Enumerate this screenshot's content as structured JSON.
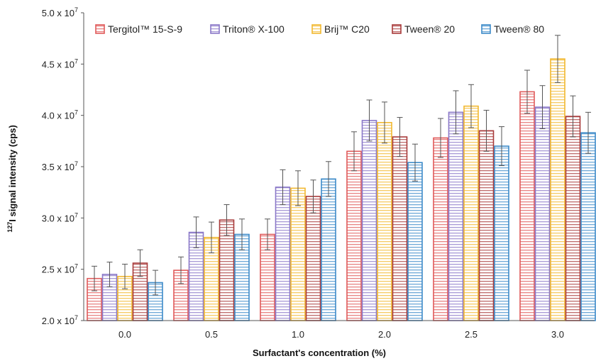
{
  "chart_data": {
    "type": "bar",
    "title": "",
    "xlabel": "Surfactant's concentration (%)",
    "ylabel_superscript": "127",
    "ylabel_main": "I signal intensity (cps)",
    "ylim": [
      20000000,
      50000000
    ],
    "y_ticks": [
      {
        "value": 20000000,
        "mantissa": "2.0 x 10",
        "exp": "7"
      },
      {
        "value": 25000000,
        "mantissa": "2.5 x 10",
        "exp": "7"
      },
      {
        "value": 30000000,
        "mantissa": "3.0 x 10",
        "exp": "7"
      },
      {
        "value": 35000000,
        "mantissa": "3.5 x 10",
        "exp": "7"
      },
      {
        "value": 40000000,
        "mantissa": "4.0 x 10",
        "exp": "7"
      },
      {
        "value": 45000000,
        "mantissa": "4.5 x 10",
        "exp": "7"
      },
      {
        "value": 50000000,
        "mantissa": "5.0 x 10",
        "exp": "7"
      }
    ],
    "categories": [
      "0.0",
      "0.5",
      "1.0",
      "2.0",
      "2.5",
      "3.0"
    ],
    "legend_position": "top",
    "series": [
      {
        "name": "Tergitol™ 15-S-9",
        "color": "#e05a5a",
        "values": [
          24100000,
          24900000,
          28400000,
          36500000,
          37800000,
          42300000
        ],
        "errors": [
          1200000,
          1300000,
          1500000,
          1900000,
          1900000,
          2100000
        ]
      },
      {
        "name": "Triton® X-100",
        "color": "#8a78c8",
        "values": [
          24500000,
          28600000,
          33000000,
          39500000,
          40300000,
          40800000
        ],
        "errors": [
          1200000,
          1500000,
          1700000,
          2000000,
          2100000,
          2100000
        ]
      },
      {
        "name": "Brij™ C20",
        "color": "#f2b830",
        "values": [
          24300000,
          28100000,
          32900000,
          39300000,
          40900000,
          45500000
        ],
        "errors": [
          1200000,
          1500000,
          1700000,
          2000000,
          2100000,
          2300000
        ]
      },
      {
        "name": "Tween® 20",
        "color": "#a83a3a",
        "values": [
          25600000,
          29800000,
          32100000,
          37900000,
          38500000,
          39900000
        ],
        "errors": [
          1300000,
          1500000,
          1600000,
          1900000,
          2000000,
          2000000
        ]
      },
      {
        "name": "Tween® 80",
        "color": "#3d8bc9",
        "values": [
          23700000,
          28400000,
          33800000,
          35400000,
          37000000,
          38300000
        ],
        "errors": [
          1200000,
          1500000,
          1700000,
          1800000,
          1900000,
          2000000
        ]
      }
    ]
  }
}
